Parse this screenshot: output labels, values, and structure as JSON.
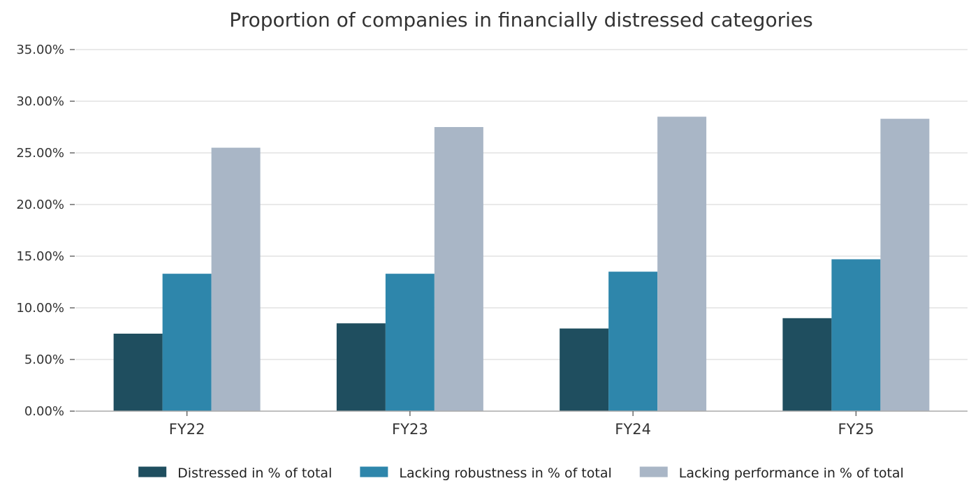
{
  "chart_data": {
    "type": "bar",
    "title": "Proportion of companies in financially distressed categories",
    "xlabel": "",
    "ylabel": "",
    "categories": [
      "FY22",
      "FY23",
      "FY24",
      "FY25"
    ],
    "series": [
      {
        "name": "Distressed in % of total",
        "color": "#1f4e5f",
        "values": [
          7.5,
          8.5,
          8.0,
          9.0
        ]
      },
      {
        "name": "Lacking robustness in % of total",
        "color": "#2e86ab",
        "values": [
          13.3,
          13.3,
          13.5,
          14.7
        ]
      },
      {
        "name": "Lacking performance in % of total",
        "color": "#a9b6c6",
        "values": [
          25.5,
          27.5,
          28.5,
          28.3
        ]
      }
    ],
    "ylim": [
      0,
      35
    ],
    "yticks": [
      "0.00%",
      "5.00%",
      "10.00%",
      "15.00%",
      "20.00%",
      "25.00%",
      "30.00%",
      "35.00%"
    ],
    "grid": "horizontal",
    "legend_position": "bottom"
  }
}
